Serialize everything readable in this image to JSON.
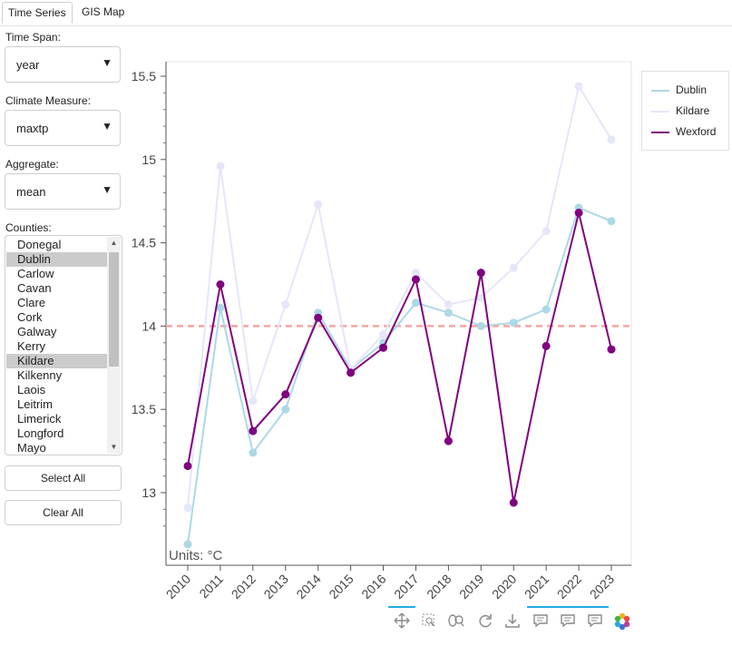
{
  "tabs": [
    {
      "label": "Time Series",
      "active": true
    },
    {
      "label": "GIS Map",
      "active": false
    }
  ],
  "controls": {
    "time_span": {
      "label": "Time Span:",
      "value": "year"
    },
    "climate_measure": {
      "label": "Climate Measure:",
      "value": "maxtp"
    },
    "aggregate": {
      "label": "Aggregate:",
      "value": "mean"
    },
    "counties": {
      "label": "Counties:",
      "items": [
        "Donegal",
        "Dublin",
        "Carlow",
        "Cavan",
        "Clare",
        "Cork",
        "Galway",
        "Kerry",
        "Kildare",
        "Kilkenny",
        "Laois",
        "Leitrim",
        "Limerick",
        "Longford",
        "Mayo"
      ],
      "selected": [
        "Dublin",
        "Kildare"
      ]
    },
    "select_all_label": "Select All",
    "clear_all_label": "Clear All"
  },
  "units_label": "Units: °C",
  "colors": {
    "dublin": "#add8e6",
    "kildare": "#e6e6fa",
    "wexford": "#800080",
    "reference": "#f4a6a0",
    "accent": "#26aae1"
  },
  "chart_data": {
    "type": "line",
    "title": "",
    "xlabel": "",
    "ylabel": "",
    "categories": [
      "2010",
      "2011",
      "2012",
      "2013",
      "2014",
      "2015",
      "2016",
      "2017",
      "2018",
      "2019",
      "2020",
      "2021",
      "2022",
      "2023"
    ],
    "ylim": [
      12.7,
      15.6
    ],
    "yticks": [
      13,
      13.5,
      14,
      14.5,
      15,
      15.5
    ],
    "ytick_labels": [
      "13",
      "13.5",
      "14",
      "14.5",
      "15",
      "15.5"
    ],
    "reference_line": 14.0,
    "legend": "top-right",
    "series": [
      {
        "name": "Dublin",
        "color": "#add8e6",
        "values": [
          12.69,
          14.11,
          13.24,
          13.5,
          14.08,
          13.74,
          13.9,
          14.14,
          14.08,
          14.0,
          14.02,
          14.1,
          14.71,
          14.63
        ]
      },
      {
        "name": "Kildare",
        "color": "#e6e6fa",
        "values": [
          12.91,
          14.96,
          13.55,
          14.13,
          14.73,
          13.74,
          13.95,
          14.32,
          14.13,
          14.17,
          14.35,
          14.57,
          15.44,
          15.12
        ]
      },
      {
        "name": "Wexford",
        "color": "#800080",
        "values": [
          13.16,
          14.25,
          13.37,
          13.59,
          14.05,
          13.72,
          13.87,
          14.28,
          13.31,
          14.32,
          12.94,
          13.88,
          14.68,
          13.86
        ]
      }
    ]
  },
  "toolbar": {
    "icons": [
      "pan-icon",
      "box-zoom-icon",
      "wheel-zoom-icon",
      "reset-icon",
      "save-icon",
      "hover-icon",
      "hover-icon",
      "hover-icon",
      "bokeh-logo-icon"
    ]
  }
}
